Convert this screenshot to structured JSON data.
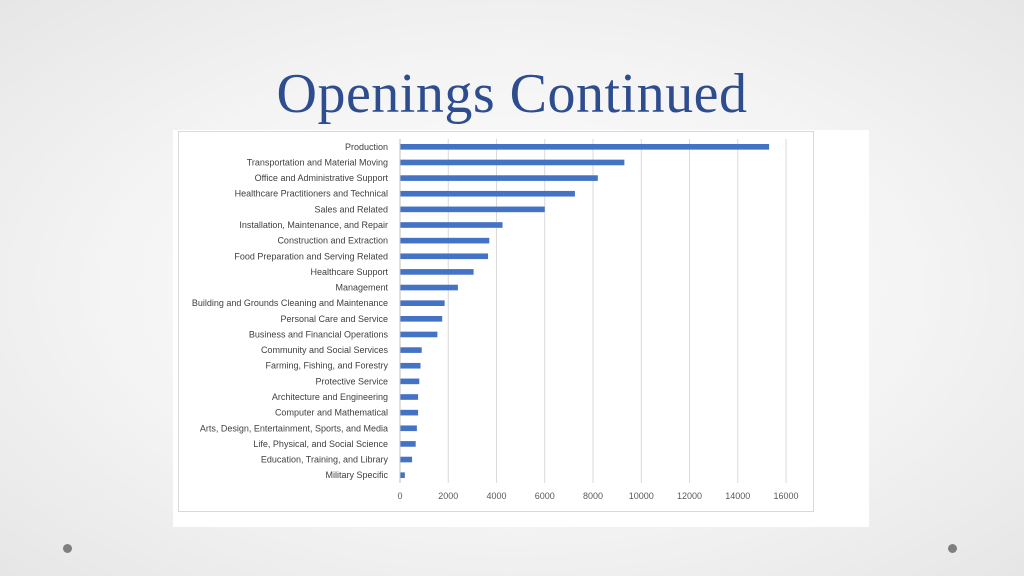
{
  "slide": {
    "title": "Openings Continued"
  },
  "colors": {
    "title": "#2e4d8f",
    "bar": "#4472c4",
    "gridline": "#d9d9d9",
    "axis_text": "#595959"
  },
  "chart_data": {
    "type": "bar",
    "orientation": "horizontal",
    "title": "",
    "xlabel": "",
    "ylabel": "",
    "grid": "vertical gridlines",
    "legend": "none",
    "xlim": [
      0,
      16000
    ],
    "xticks": [
      "0",
      "2000",
      "4000",
      "6000",
      "8000",
      "10000",
      "12000",
      "14000",
      "16000"
    ],
    "categories": [
      "Production",
      "Transportation and Material Moving",
      "Office and Administrative Support",
      "Healthcare Practitioners and Technical",
      "Sales and Related",
      "Installation, Maintenance, and Repair",
      "Construction and Extraction",
      "Food Preparation and Serving Related",
      "Healthcare Support",
      "Management",
      "Building and Grounds Cleaning and Maintenance",
      "Personal Care and Service",
      "Business and Financial Operations",
      "Community and Social Services",
      "Farming, Fishing, and Forestry",
      "Protective Service",
      "Architecture and Engineering",
      "Computer and Mathematical",
      "Arts, Design, Entertainment, Sports, and Media",
      "Life, Physical, and Social Science",
      "Education, Training, and Library",
      "Military Specific"
    ],
    "values": [
      15300,
      9300,
      8200,
      7250,
      6000,
      4250,
      3700,
      3650,
      3050,
      2400,
      1850,
      1750,
      1550,
      900,
      850,
      800,
      750,
      750,
      700,
      650,
      500,
      200
    ]
  }
}
